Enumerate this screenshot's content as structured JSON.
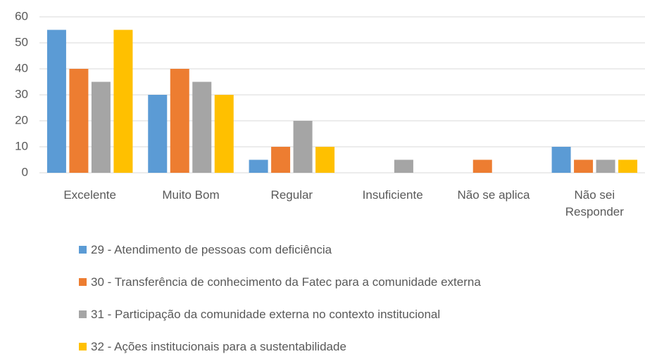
{
  "chart_data": {
    "type": "bar",
    "categories": [
      "Excelente",
      "Muito Bom",
      "Regular",
      "Insuficiente",
      "Não se aplica",
      "Não sei Responder"
    ],
    "series": [
      {
        "name": "29 - Atendimento de pessoas com deficiência",
        "color": "#5b9bd5",
        "values": [
          55,
          30,
          5,
          0,
          0,
          10
        ]
      },
      {
        "name": "30 - Transferência de conhecimento da Fatec para a comunidade externa",
        "color": "#ed7d31",
        "values": [
          40,
          40,
          10,
          0,
          5,
          5
        ]
      },
      {
        "name": "31 - Participação da comunidade externa no contexto institucional",
        "color": "#a5a5a5",
        "values": [
          35,
          35,
          20,
          5,
          0,
          5
        ]
      },
      {
        "name": "32 - Ações institucionais para a sustentabilidade",
        "color": "#ffc000",
        "values": [
          55,
          30,
          10,
          0,
          0,
          5
        ]
      }
    ],
    "ylim": [
      0,
      60
    ],
    "yticks": [
      0,
      10,
      20,
      30,
      40,
      50,
      60
    ],
    "grid": true,
    "legend": "bottom"
  }
}
